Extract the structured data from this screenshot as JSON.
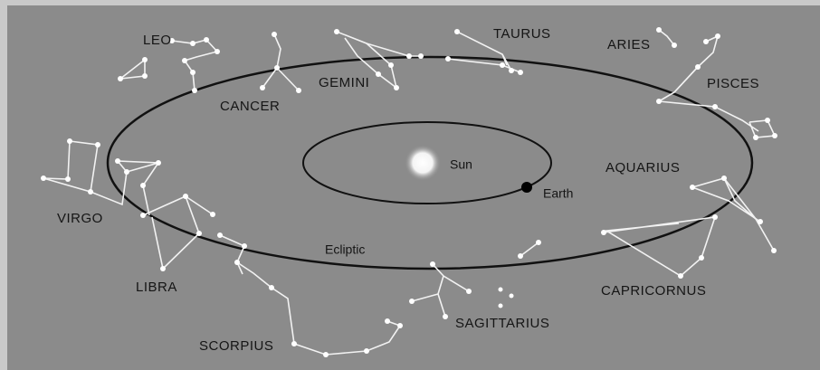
{
  "diagram": {
    "sun": "Sun",
    "earth": "Earth",
    "ecliptic": "Ecliptic",
    "constellations": [
      "LEO",
      "CANCER",
      "GEMINI",
      "TAURUS",
      "ARIES",
      "PISCES",
      "AQUARIUS",
      "CAPRICORNUS",
      "SAGITTARIUS",
      "SCORPIUS",
      "LIBRA",
      "VIRGO"
    ]
  }
}
